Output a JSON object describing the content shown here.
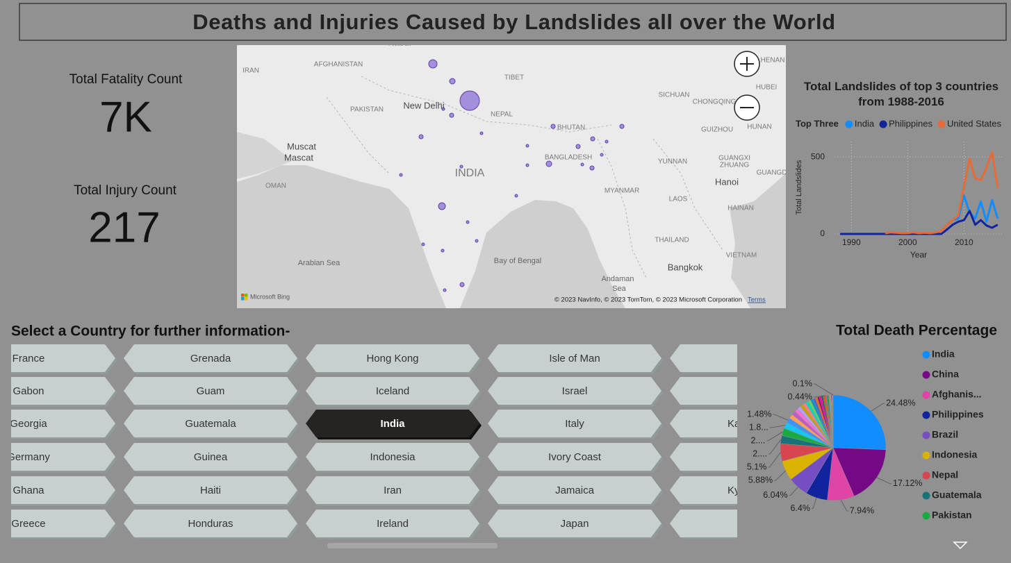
{
  "header": {
    "title": "Deaths and Injuries Caused by Landslides all over the World"
  },
  "kpis": [
    {
      "label": "Total Fatality Count",
      "value": "7K"
    },
    {
      "label": "Total Injury Count",
      "value": "217"
    }
  ],
  "map": {
    "labels": [
      "Kabul",
      "IRAN",
      "AFGHANISTAN",
      "TIBET",
      "PAKISTAN",
      "New Delhi",
      "NEPAL",
      "BHUTAN",
      "SICHUAN",
      "CHONGQING",
      "HUBEI",
      "HENAN",
      "HUNAN",
      "GUIZHOU",
      "Muscat",
      "Mascat",
      "INDIA",
      "BANGLADESH",
      "YUNNAN",
      "GUANGXI",
      "ZHUANG",
      "GUANGDONG",
      "OMAN",
      "Hanoi",
      "MYANMAR",
      "LAOS",
      "HAINAN",
      "THAILAND",
      "VIETNAM",
      "Arabian Sea",
      "Bay of Bengal",
      "Andaman",
      "Sea",
      "Bangkok"
    ],
    "logo": "Microsoft Bing",
    "attribution": "© 2023 NavInfo, © 2023 TomTom, © 2023 Microsoft Corporation",
    "terms": "Terms"
  },
  "slicer": {
    "title": "Select a Country for further information-",
    "selected": "India",
    "rows": [
      [
        "France",
        "Grenada",
        "Hong Kong",
        "Isle of Man",
        null
      ],
      [
        "Gabon",
        "Guam",
        "Iceland",
        "Israel",
        null
      ],
      [
        "Georgia",
        "Guatemala",
        "India",
        "Italy",
        "Ka"
      ],
      [
        "Germany",
        "Guinea",
        "Indonesia",
        "Ivory Coast",
        null
      ],
      [
        "Ghana",
        "Haiti",
        "Iran",
        "Jamaica",
        "Ky"
      ],
      [
        "Greece",
        "Honduras",
        "Ireland",
        "Japan",
        null
      ]
    ]
  },
  "chart_data": [
    {
      "type": "line",
      "title": "Total Landslides of top 3 countries from 1988-2016",
      "legend_title": "Top Three",
      "x_label": "Year",
      "y_label": "Total Landslides",
      "x": [
        1988,
        1989,
        1990,
        1991,
        1992,
        1993,
        1994,
        1995,
        1996,
        1997,
        1998,
        1999,
        2000,
        2001,
        2002,
        2003,
        2004,
        2005,
        2006,
        2007,
        2008,
        2009,
        2010,
        2011,
        2012,
        2013,
        2014,
        2015,
        2016
      ],
      "series": [
        {
          "name": "India",
          "color": "#118DFF",
          "values": [
            null,
            null,
            null,
            null,
            null,
            null,
            null,
            null,
            null,
            null,
            null,
            null,
            null,
            null,
            null,
            null,
            null,
            null,
            null,
            60,
            90,
            100,
            250,
            140,
            100,
            210,
            80,
            220,
            100
          ]
        },
        {
          "name": "Philippines",
          "color": "#12239E",
          "values": [
            0,
            0,
            0,
            0,
            0,
            0,
            0,
            0,
            0,
            0,
            0,
            0,
            0,
            0,
            0,
            0,
            0,
            0,
            0,
            30,
            60,
            80,
            90,
            150,
            60,
            90,
            55,
            40,
            60
          ]
        },
        {
          "name": "United States",
          "color": "#E66C37",
          "values": [
            null,
            null,
            null,
            null,
            null,
            null,
            null,
            null,
            5,
            10,
            8,
            5,
            6,
            10,
            5,
            8,
            5,
            10,
            20,
            60,
            90,
            120,
            310,
            490,
            360,
            350,
            430,
            530,
            300
          ]
        }
      ],
      "xlim": [
        1987,
        2017
      ],
      "ylim": [
        0,
        600
      ],
      "xticks": [
        1990,
        2000,
        2010
      ],
      "yticks": [
        0,
        500
      ],
      "grid": true
    },
    {
      "type": "pie",
      "title": "Total Death Percentage",
      "categories": [
        "India",
        "China",
        "Afghanis...",
        "Philippines",
        "Brazil",
        "Indonesia",
        "Nepal",
        "Guatemala",
        "Pakistan",
        null,
        null,
        null,
        null,
        null,
        null,
        null,
        null,
        null,
        null,
        null,
        null,
        null,
        null,
        null,
        null,
        null,
        null,
        null,
        null,
        null,
        null,
        null,
        null,
        null,
        null,
        null
      ],
      "values": [
        24.48,
        17.12,
        7.94,
        6.4,
        6.04,
        5.88,
        5.1,
        2.4,
        2.2,
        1.84,
        1.48,
        1.3,
        1.2,
        1.1,
        1.0,
        0.95,
        0.9,
        0.85,
        0.8,
        0.75,
        0.7,
        0.65,
        0.6,
        0.55,
        0.5,
        0.48,
        0.44,
        0.4,
        0.35,
        0.3,
        0.25,
        0.2,
        0.18,
        0.15,
        0.12,
        0.1
      ],
      "value_labels": [
        "24.48%",
        "17.12%",
        "7.94%",
        "6.4%",
        "6.04%",
        "5.88%",
        "5.1%",
        "2....",
        "2....",
        "1.8...",
        "1.48%",
        null,
        null,
        null,
        null,
        null,
        null,
        null,
        null,
        null,
        null,
        null,
        null,
        null,
        null,
        null,
        "0.44%",
        null,
        null,
        null,
        null,
        null,
        null,
        null,
        null,
        "0.1%"
      ],
      "colors": [
        "#118DFF",
        "#750985",
        "#E044A7",
        "#12239E",
        "#744EC2",
        "#D9B300",
        "#D64550",
        "#197278",
        "#1AAB40",
        "#15C6F4",
        "#4092FF",
        "#FFA058",
        "#BE5DC9",
        "#F472D0",
        "#B5A1FF",
        "#C4A200",
        "#FF8080",
        "#00DBBC",
        "#5BD667",
        "#0091D5",
        "#4668C5",
        "#FF6300",
        "#99008A",
        "#EC008C",
        "#533285",
        "#99700A",
        "#FF4141",
        "#1F9A85",
        "#25891C",
        "#57A5FF",
        "#B887AD",
        "#E8C600",
        "#6B007B",
        "#F2C80F",
        "#A66999",
        "#3599B8"
      ]
    }
  ]
}
